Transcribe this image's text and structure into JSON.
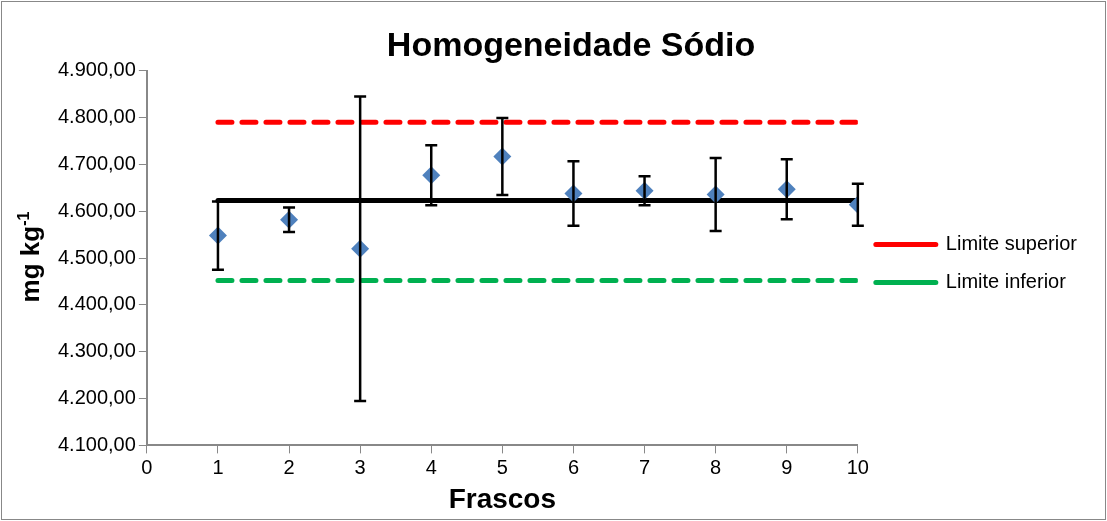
{
  "chart_data": {
    "type": "scatter",
    "title": "Homogeneidade Sódio",
    "xlabel": "Frascos",
    "ylabel": "mg kg$^{-1}$",
    "xlim": [
      0,
      10
    ],
    "xticks": [
      0,
      1,
      2,
      3,
      4,
      5,
      6,
      7,
      8,
      9,
      10
    ],
    "ylim": [
      4100,
      4900
    ],
    "yticks": [
      {
        "value": 4100,
        "label": "4.100,00"
      },
      {
        "value": 4200,
        "label": "4.200,00"
      },
      {
        "value": 4300,
        "label": "4.300,00"
      },
      {
        "value": 4400,
        "label": "4.400,00"
      },
      {
        "value": 4500,
        "label": "4.500,00"
      },
      {
        "value": 4600,
        "label": "4.600,00"
      },
      {
        "value": 4700,
        "label": "4.700,00"
      },
      {
        "value": 4800,
        "label": "4.800,00"
      },
      {
        "value": 4900,
        "label": "4.900,00"
      }
    ],
    "grid": false,
    "legend": "right",
    "series": [
      {
        "marker": "diamond",
        "color": "#4f81bd",
        "x": [
          1,
          2,
          3,
          4,
          5,
          6,
          7,
          8,
          9,
          10
        ],
        "values": [
          4548,
          4582,
          4520,
          4677,
          4717,
          4638,
          4644,
          4636,
          4647,
          4614
        ],
        "errors": [
          73,
          26,
          325,
          64,
          82,
          69,
          31,
          78,
          64,
          45
        ]
      },
      {
        "type": "line",
        "color": "#000000",
        "x": [
          1,
          10
        ],
        "values": [
          4623,
          4623
        ],
        "marker": "none",
        "line_style": "solid"
      },
      {
        "type": "line",
        "name": "Limite superior",
        "color": "#ff0000",
        "x": [
          1,
          10
        ],
        "values": [
          4790,
          4790
        ],
        "marker": "none",
        "line_style": "dashed"
      },
      {
        "type": "line",
        "name": "Limite inferior",
        "color": "#00b050",
        "x": [
          1,
          10
        ],
        "values": [
          4452,
          4452
        ],
        "marker": "none",
        "line_style": "dashed"
      }
    ]
  }
}
